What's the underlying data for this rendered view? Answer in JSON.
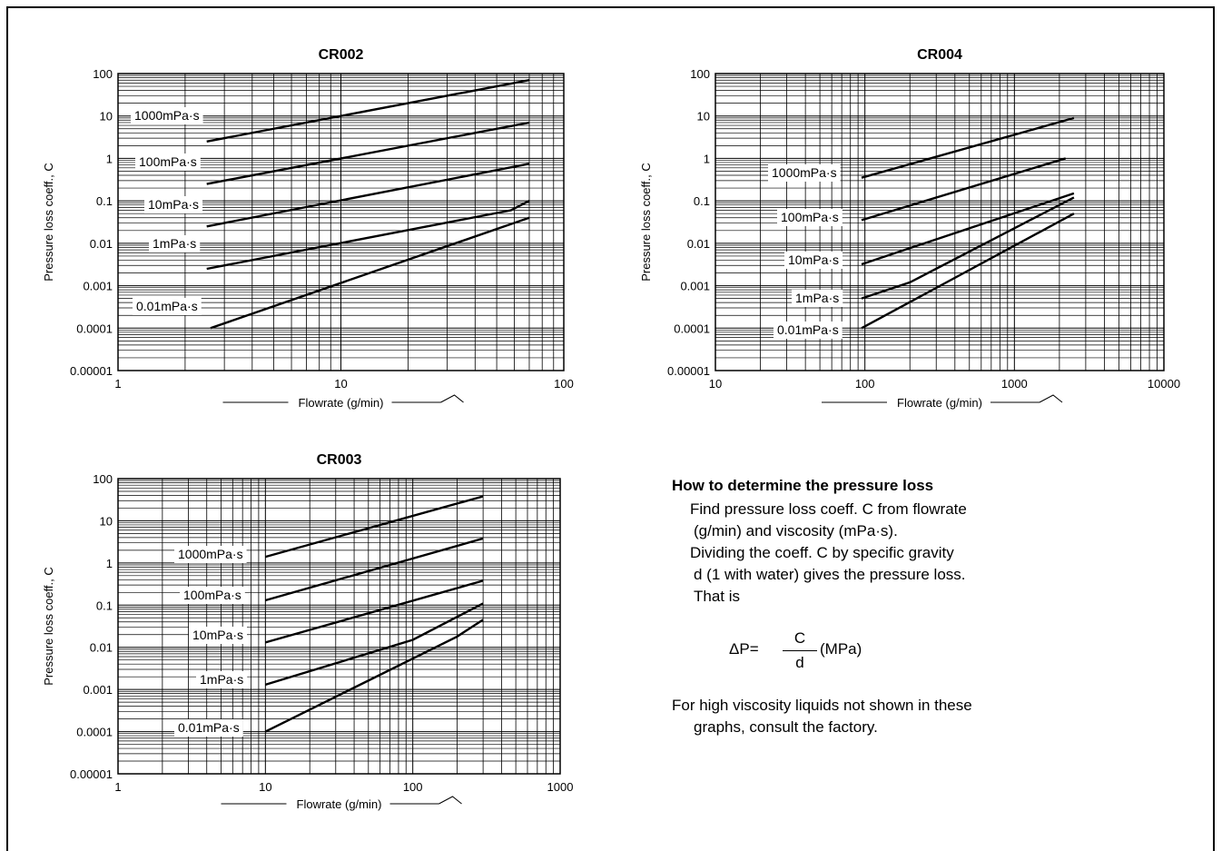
{
  "chart_data": [
    {
      "type": "line",
      "title": "CR002",
      "xlabel": "Flowrate (g/min)",
      "ylabel": "Pressure loss coeff., C",
      "x_scale": "log",
      "y_scale": "log",
      "xlim": [
        1,
        100
      ],
      "ylim": [
        1e-05,
        100
      ],
      "x_ticks": [
        "1",
        "10",
        "100"
      ],
      "y_ticks": [
        "100",
        "10",
        "1",
        "0.1",
        "0.01",
        "0.001",
        "0.0001",
        "0.00001"
      ],
      "grid": true,
      "series": [
        {
          "name": "1000mPa·s",
          "x": [
            2.5,
            70
          ],
          "y": [
            2.5,
            70
          ]
        },
        {
          "name": "100mPa·s",
          "x": [
            2.5,
            70
          ],
          "y": [
            0.25,
            7
          ]
        },
        {
          "name": "10mPa·s",
          "x": [
            2.5,
            70
          ],
          "y": [
            0.025,
            0.75
          ]
        },
        {
          "name": "1mPa·s",
          "x": [
            2.5,
            58,
            70
          ],
          "y": [
            0.0025,
            0.06,
            0.1
          ]
        },
        {
          "name": "0.01mPa·s",
          "x": [
            2.6,
            70
          ],
          "y": [
            0.0001,
            0.04
          ]
        }
      ]
    },
    {
      "type": "line",
      "title": "CR004",
      "xlabel": "Flowrate (g/min)",
      "ylabel": "Pressure loss coeff., C",
      "x_scale": "log",
      "y_scale": "log",
      "xlim": [
        10,
        10000
      ],
      "ylim": [
        1e-05,
        100
      ],
      "x_ticks": [
        "10",
        "100",
        "1000",
        "10000"
      ],
      "y_ticks": [
        "100",
        "10",
        "1",
        "0.1",
        "0.01",
        "0.001",
        "0.0001",
        "0.00001"
      ],
      "grid": true,
      "series": [
        {
          "name": "1000mPa·s",
          "x": [
            95,
            2500
          ],
          "y": [
            0.35,
            9
          ]
        },
        {
          "name": "100mPa·s",
          "x": [
            95,
            2200
          ],
          "y": [
            0.035,
            1
          ]
        },
        {
          "name": "10mPa·s",
          "x": [
            95,
            2500
          ],
          "y": [
            0.0032,
            0.15
          ]
        },
        {
          "name": "1mPa·s",
          "x": [
            95,
            200,
            2500
          ],
          "y": [
            0.0005,
            0.0012,
            0.12
          ]
        },
        {
          "name": "0.01mPa·s",
          "x": [
            95,
            2500
          ],
          "y": [
            0.0001,
            0.05
          ]
        }
      ]
    },
    {
      "type": "line",
      "title": "CR003",
      "xlabel": "Flowrate (g/min)",
      "ylabel": "Pressure loss coeff., C",
      "x_scale": "log",
      "y_scale": "log",
      "xlim": [
        1,
        1000
      ],
      "ylim": [
        1e-05,
        100
      ],
      "x_ticks": [
        "1",
        "10",
        "100",
        "1000"
      ],
      "y_ticks": [
        "100",
        "10",
        "1",
        "0.1",
        "0.01",
        "0.001",
        "0.0001",
        "0.00001"
      ],
      "grid": true,
      "series": [
        {
          "name": "1000mPa·s",
          "x": [
            10,
            300
          ],
          "y": [
            1.4,
            38
          ]
        },
        {
          "name": "100mPa·s",
          "x": [
            10,
            300
          ],
          "y": [
            0.13,
            3.8
          ]
        },
        {
          "name": "10mPa·s",
          "x": [
            10,
            300
          ],
          "y": [
            0.013,
            0.38
          ]
        },
        {
          "name": "1mPa·s",
          "x": [
            10,
            100,
            300
          ],
          "y": [
            0.0013,
            0.015,
            0.11
          ]
        },
        {
          "name": "0.01mPa·s",
          "x": [
            10,
            200,
            300
          ],
          "y": [
            0.0001,
            0.018,
            0.045
          ]
        }
      ]
    }
  ],
  "help": {
    "heading": "How to determine the pressure loss",
    "line1": "Find pressure loss coeff. C from flowrate",
    "line2": "(g/min) and viscosity (mPa·s).",
    "line3": "Dividing the coeff. C by specific gravity",
    "line4": "d (1 with water) gives the pressure loss.",
    "line5": "That is",
    "formula_lhs": "ΔP=",
    "formula_num": "C",
    "formula_den": "d",
    "formula_unit": "(MPa)",
    "note1": "For high viscosity liquids not shown in these",
    "note2": "graphs, consult the factory."
  }
}
